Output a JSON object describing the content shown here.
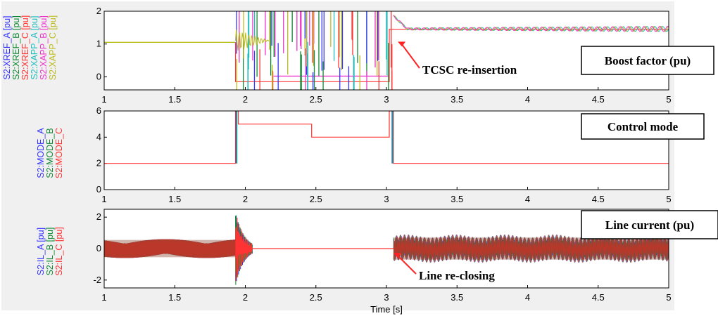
{
  "chart_data": [
    {
      "type": "line",
      "xlim": [
        1,
        5
      ],
      "ylim": [
        -0.4,
        2
      ],
      "x_ticks": [
        "1",
        "1.5",
        "2",
        "2.5",
        "3",
        "3.5",
        "4",
        "4.5",
        "5"
      ],
      "y_ticks": [
        "0",
        "1",
        "2"
      ],
      "legend_labels": [
        {
          "text": "S2:XREF_A [pu]",
          "color": "#3333ff"
        },
        {
          "text": "S2:XREF_B [pu]",
          "color": "#118833"
        },
        {
          "text": "S2:XREF_C [pu]",
          "color": "#ff3333"
        },
        {
          "text": "S2:XAPP_A [pu]",
          "color": "#22bbbb"
        },
        {
          "text": "S2:XAPP_B [pu]",
          "color": "#ee33cc"
        },
        {
          "text": "S2:XAPP_C [pu]",
          "color": "#bbbb22"
        }
      ],
      "series": [
        {
          "name": "S2:XREF_C [pu]",
          "x": [
            1,
            1.93,
            1.93,
            3.02,
            3.02,
            5
          ],
          "y": [
            1.05,
            1.05,
            -0.15,
            -0.15,
            1.45,
            1.45
          ]
        },
        {
          "name": "S2:XAPP_A [pu]",
          "x": [
            1,
            1.93,
            3.05,
            3.2,
            3.5,
            4,
            4.5,
            5
          ],
          "y": [
            1.05,
            1.05,
            1.5,
            1.45,
            1.42,
            1.45,
            1.5,
            1.48
          ]
        }
      ],
      "annotations": [
        {
          "text": "TCSC re-insertion",
          "x": 3.05,
          "y": 1.2
        },
        {
          "text": "Boost factor (pu)"
        }
      ]
    },
    {
      "type": "line",
      "xlim": [
        1,
        5
      ],
      "ylim": [
        0,
        6
      ],
      "x_ticks": [
        "1",
        "1.5",
        "2",
        "2.5",
        "3",
        "3.5",
        "4",
        "4.5",
        "5"
      ],
      "y_ticks": [
        "0",
        "2",
        "4",
        "6"
      ],
      "legend_labels": [
        {
          "text": "S2:MODE_A",
          "color": "#3333ff"
        },
        {
          "text": "S2:MODE_B",
          "color": "#118833"
        },
        {
          "text": "S2:MODE_C",
          "color": "#ff3333"
        }
      ],
      "series": [
        {
          "name": "S2:MODE_C",
          "x": [
            1,
            1.93,
            1.93,
            1.95,
            1.95,
            2.47,
            2.47,
            3.02,
            3.02,
            3.05,
            3.05,
            5
          ],
          "y": [
            2,
            2,
            6,
            6,
            5,
            5,
            4,
            4,
            6,
            6,
            2,
            2
          ]
        }
      ],
      "annotations": [
        {
          "text": "Control mode"
        }
      ]
    },
    {
      "type": "line",
      "xlim": [
        1,
        5
      ],
      "ylim": [
        -2.5,
        2.5
      ],
      "x_ticks": [
        "1",
        "1.5",
        "2",
        "2.5",
        "3",
        "3.5",
        "4",
        "4.5",
        "5"
      ],
      "y_ticks": [
        "-2",
        "0",
        "2"
      ],
      "xlabel": "Time [s]",
      "legend_labels": [
        {
          "text": "S2:IL_A [pu]",
          "color": "#3333ff"
        },
        {
          "text": "S2:IL_B [pu]",
          "color": "#118833"
        },
        {
          "text": "S2:IL_C [pu]",
          "color": "#ff3333"
        }
      ],
      "series": [
        {
          "name": "S2:IL_A [pu]",
          "x": [
            1,
            1.93,
            2.05,
            3.02,
            3.05,
            5
          ],
          "y": [
            0.6,
            0.6,
            0,
            0,
            0.8,
            0.8
          ]
        }
      ],
      "annotations": [
        {
          "text": "Line current (pu)"
        },
        {
          "text": "Line re-closing",
          "x": 3.02,
          "y": 0
        }
      ]
    }
  ]
}
